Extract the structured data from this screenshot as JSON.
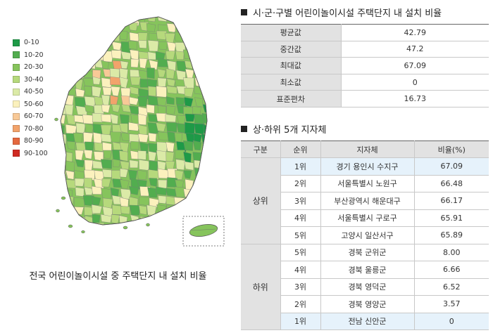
{
  "map": {
    "caption": "전국 어린이놀이시설 중 주택단지 내 설치 비율",
    "legend": [
      {
        "label": "0-10",
        "color": "#1e9a47"
      },
      {
        "label": "10-20",
        "color": "#52ad4f"
      },
      {
        "label": "20-30",
        "color": "#86c45c"
      },
      {
        "label": "30-40",
        "color": "#b6d97c"
      },
      {
        "label": "40-50",
        "color": "#dbeaa7"
      },
      {
        "label": "50-60",
        "color": "#fbf1bd"
      },
      {
        "label": "60-70",
        "color": "#f8c997"
      },
      {
        "label": "70-80",
        "color": "#f2a36b"
      },
      {
        "label": "80-90",
        "color": "#e4683e"
      },
      {
        "label": "90-100",
        "color": "#cf2a22"
      }
    ]
  },
  "stats": {
    "title": "시·군·구별 어린이놀이시설 주택단지 내 설치 비율",
    "rows": [
      {
        "label": "평균값",
        "value": "42.79"
      },
      {
        "label": "중간값",
        "value": "47.2"
      },
      {
        "label": "최대값",
        "value": "67.09"
      },
      {
        "label": "최소값",
        "value": "0"
      },
      {
        "label": "표준편차",
        "value": "16.73"
      }
    ]
  },
  "ranking": {
    "title": "상·하위 5개 지자체",
    "headers": {
      "group": "구분",
      "rank": "순위",
      "region": "지자체",
      "ratio": "비율(%)"
    },
    "top_label": "상위",
    "bottom_label": "하위",
    "top": [
      {
        "rank": "1위",
        "region": "경기 용인시 수지구",
        "ratio": "67.09"
      },
      {
        "rank": "2위",
        "region": "서울특별시 노원구",
        "ratio": "66.48"
      },
      {
        "rank": "3위",
        "region": "부산광역시 해운대구",
        "ratio": "66.17"
      },
      {
        "rank": "4위",
        "region": "서울특별시 구로구",
        "ratio": "65.91"
      },
      {
        "rank": "5위",
        "region": "고양시 일산서구",
        "ratio": "65.89"
      }
    ],
    "bottom": [
      {
        "rank": "5위",
        "region": "경북 군위군",
        "ratio": "8.00"
      },
      {
        "rank": "4위",
        "region": "경북 울릉군",
        "ratio": "6.66"
      },
      {
        "rank": "3위",
        "region": "경북 영덕군",
        "ratio": "6.52"
      },
      {
        "rank": "2위",
        "region": "경북 영양군",
        "ratio": "3.57"
      },
      {
        "rank": "1위",
        "region": "전남 신안군",
        "ratio": "0"
      }
    ]
  }
}
